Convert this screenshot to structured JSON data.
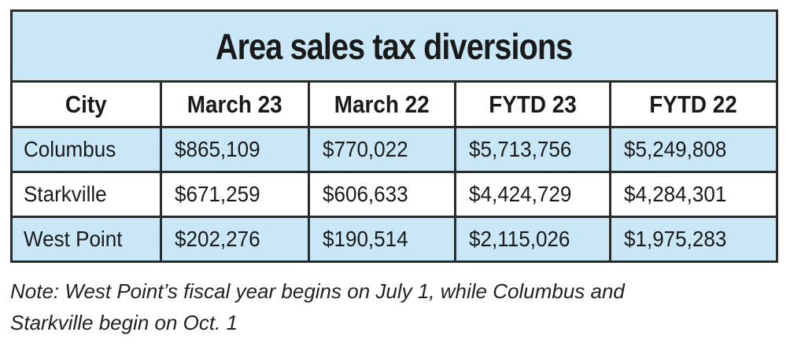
{
  "chart_data": {
    "type": "table",
    "title": "Area sales tax diversions",
    "columns": [
      "City",
      "March 23",
      "March 22",
      "FYTD 23",
      "FYTD 22"
    ],
    "rows": [
      {
        "city": "Columbus",
        "values": [
          "$865,109",
          "$770,022",
          "$5,713,756",
          "$5,249,808"
        ]
      },
      {
        "city": "Starkville",
        "values": [
          "$671,259",
          "$606,633",
          "$4,424,729",
          "$4,284,301"
        ]
      },
      {
        "city": "West Point",
        "values": [
          "$202,276",
          "$190,514",
          "$2,115,026",
          "$1,975,283"
        ]
      }
    ],
    "note_lines": [
      "Note: West Point’s fiscal year begins on July 1, while Columbus and",
      "Starkville begin on Oct. 1"
    ]
  },
  "colors": {
    "header_band": "#c9e7f6",
    "shaded_row": "#c9e7f6",
    "border": "#2b2b2b",
    "text": "#1a1a1a"
  }
}
